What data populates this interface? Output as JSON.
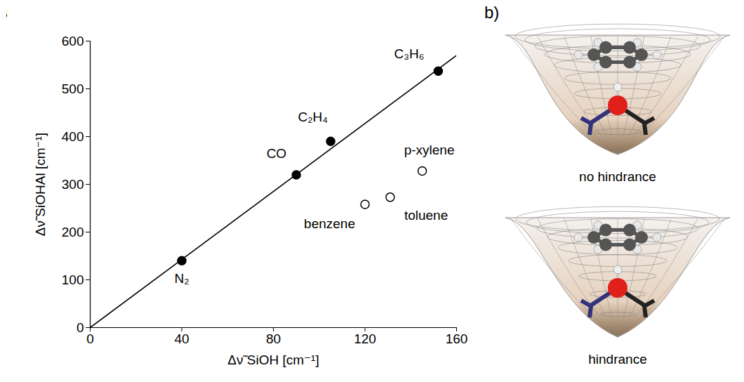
{
  "chart_data": {
    "type": "scatter",
    "x_label": "Δν̃ SiOH [cm⁻¹]",
    "y_label": "Δν̃ SiOHAl [cm⁻¹]",
    "xlim": [
      0,
      160
    ],
    "xticks": [
      0,
      40,
      80,
      120,
      160
    ],
    "ylim": [
      0,
      600
    ],
    "yticks": [
      0,
      100,
      200,
      300,
      400,
      500,
      600
    ],
    "grid": false,
    "series": [
      {
        "type": "scatter",
        "marker": "filled",
        "color": "#000000",
        "labels": [
          "N₂",
          "CO",
          "C₂H₄",
          "C₃H₆"
        ],
        "x": [
          40,
          90,
          105,
          152
        ],
        "values": [
          140,
          320,
          390,
          537
        ]
      },
      {
        "type": "scatter",
        "marker": "open",
        "color": "#000000",
        "labels": [
          "benzene",
          "toluene",
          "p-xylene"
        ],
        "x": [
          120,
          131,
          145
        ],
        "values": [
          258,
          273,
          328
        ]
      },
      {
        "type": "line",
        "line_style": "solid",
        "color": "#000000",
        "x": [
          0,
          160
        ],
        "values": [
          0,
          570
        ]
      }
    ]
  },
  "panels": {
    "a": "a)",
    "b": {
      "letter": "b)",
      "captions": [
        "no hindrance",
        "hindrance"
      ]
    }
  }
}
